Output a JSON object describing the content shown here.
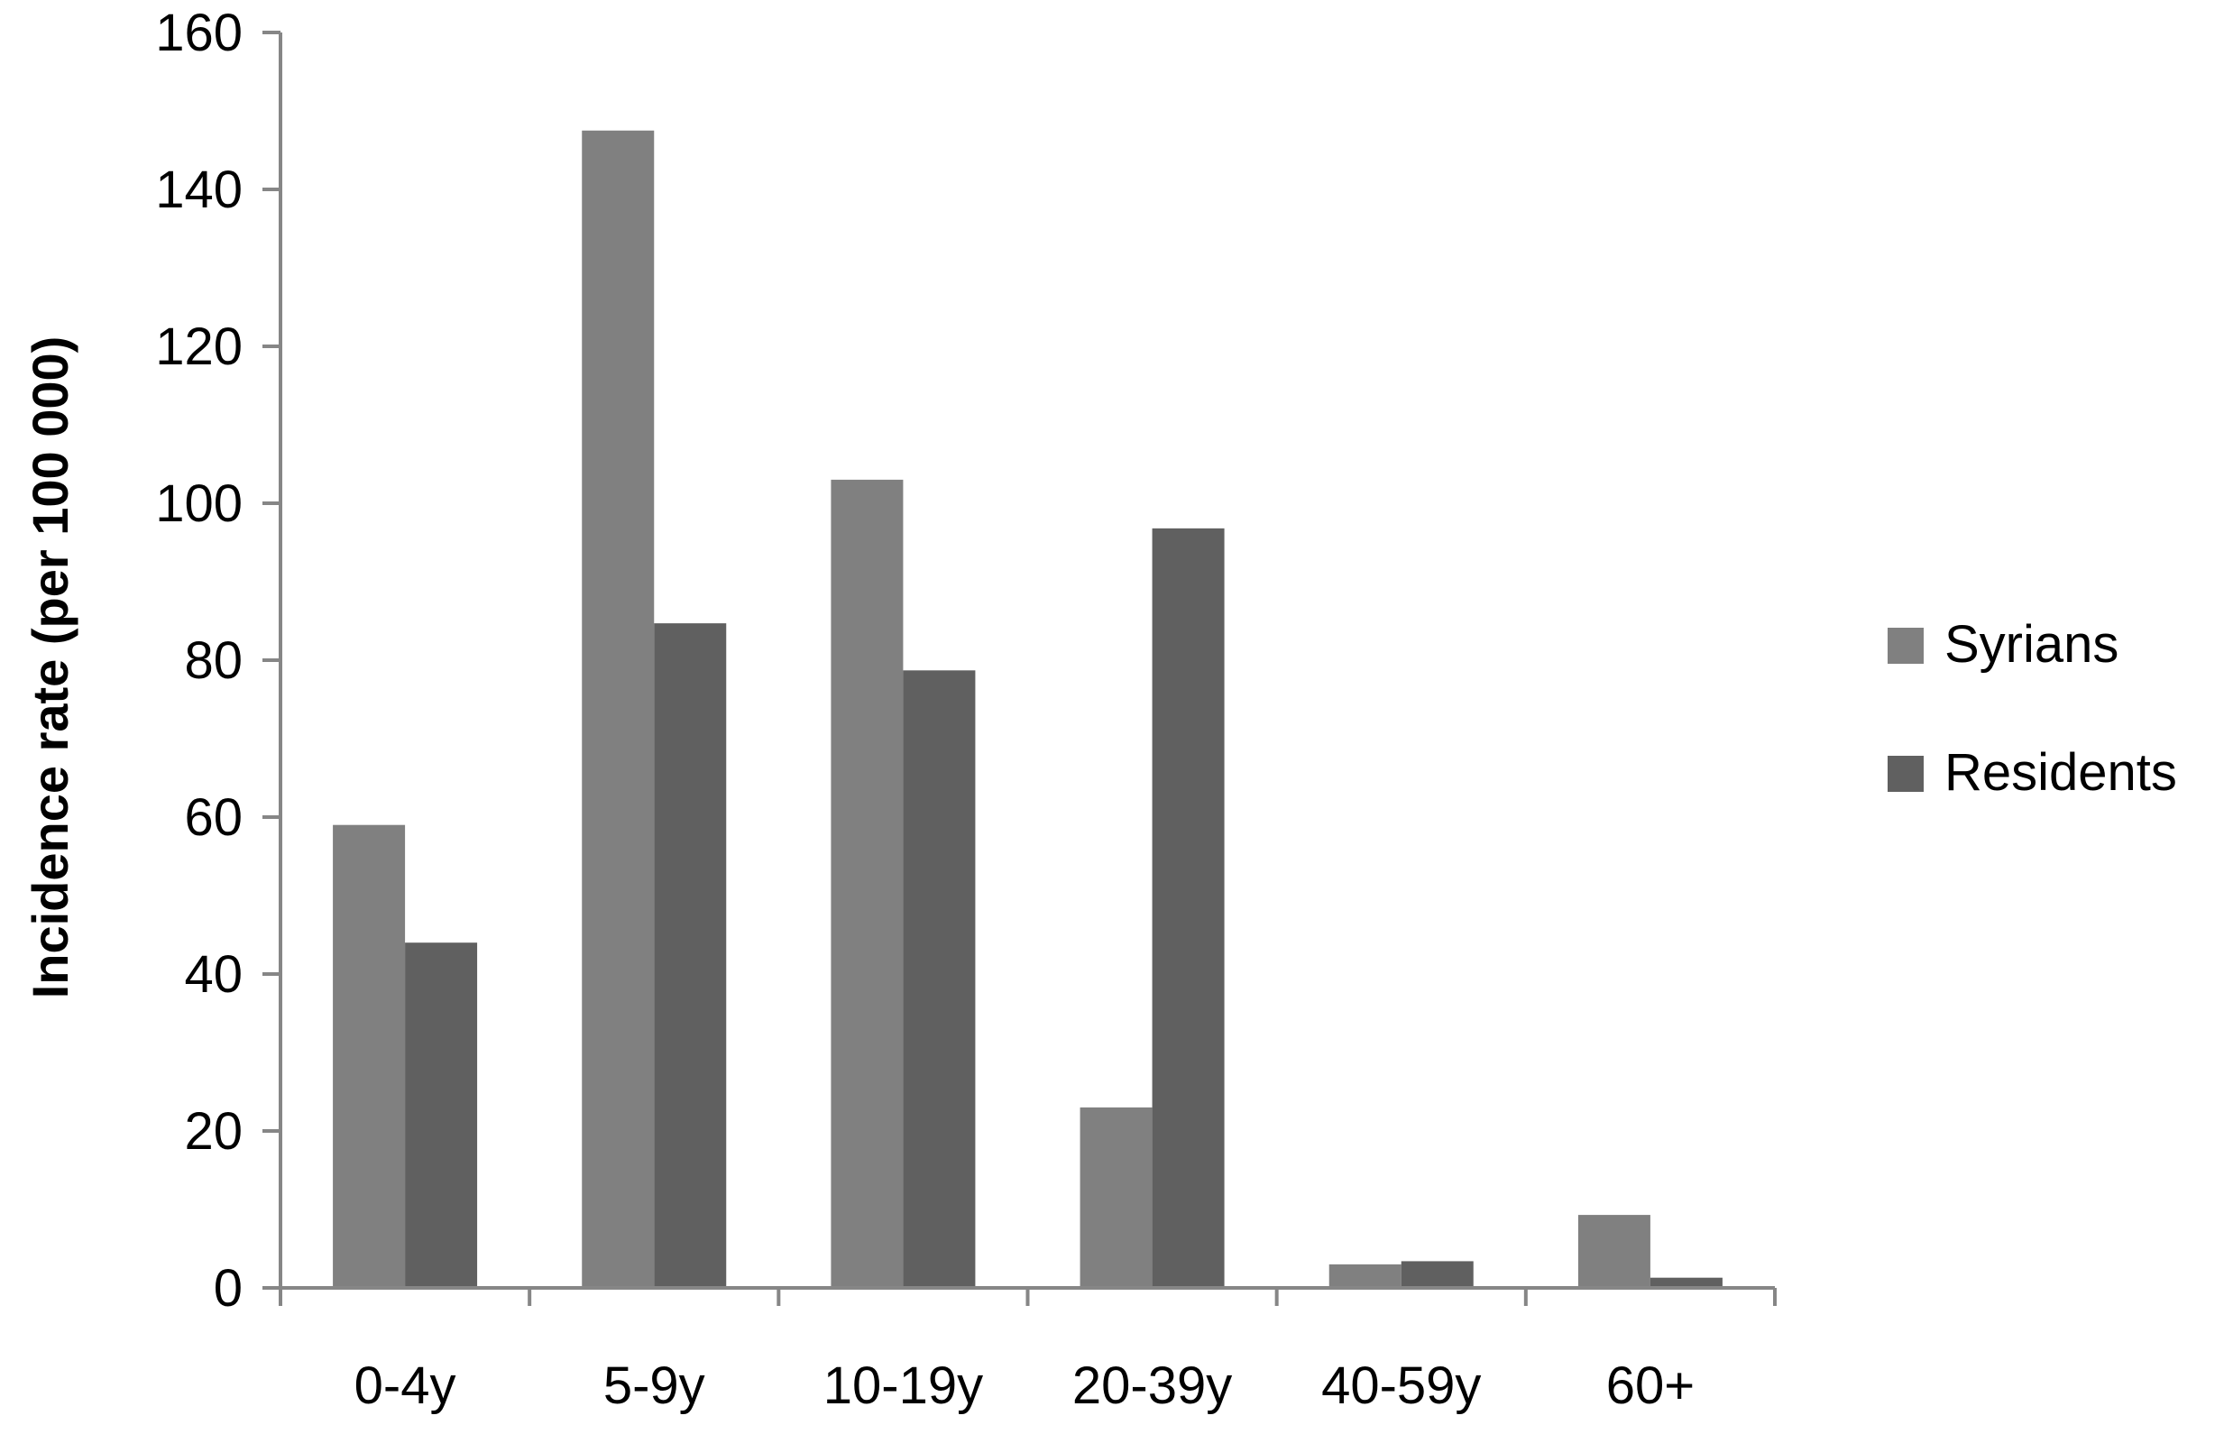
{
  "chart_data": {
    "type": "bar",
    "title": "",
    "xlabel": "",
    "ylabel": "Incidence rate (per 100 000)",
    "ylim": [
      0,
      160
    ],
    "yticks": [
      0,
      20,
      40,
      60,
      80,
      100,
      120,
      140,
      160
    ],
    "ytick_labels": [
      "0",
      "20",
      "40",
      "60",
      "80",
      "100",
      "120",
      "140",
      "160"
    ],
    "categories": [
      "0-4y",
      "5-9y",
      "10-19y",
      "20-39y",
      "40-59y",
      "60+"
    ],
    "series": [
      {
        "name": "Syrians",
        "color": "#808080",
        "values": [
          59,
          147.5,
          103,
          23,
          3,
          9.3
        ]
      },
      {
        "name": "Residents",
        "color": "#606060",
        "values": [
          44,
          84.7,
          78.7,
          96.8,
          3.4,
          1.3
        ]
      }
    ],
    "grid": false,
    "legend_position": "right",
    "axis_color": "#868686"
  }
}
